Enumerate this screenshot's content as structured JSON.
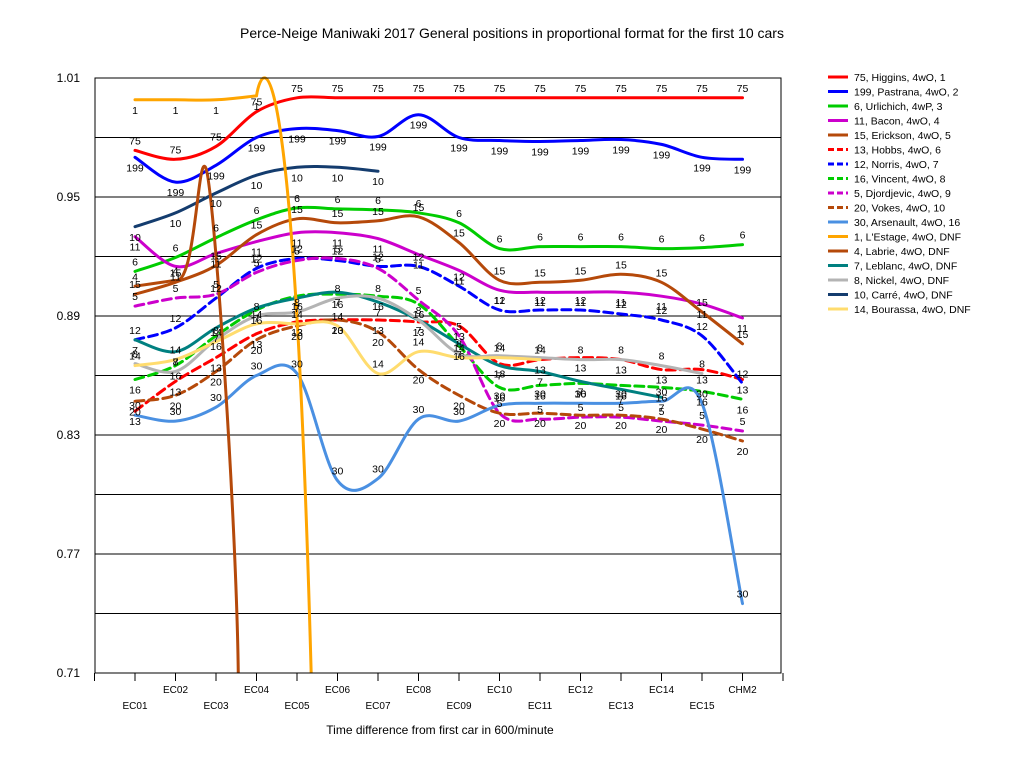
{
  "chart_data": {
    "type": "line",
    "title": "Perce-Neige Maniwaki 2017  General positions in proportional format for the first 10 cars",
    "xlabel": "Time difference from first car in 600/minute",
    "ylabel": "",
    "ylim": [
      0.71,
      1.01
    ],
    "yticks": [
      "0.71",
      "0.77",
      "0.83",
      "0.89",
      "0.95",
      "1.01"
    ],
    "categories": [
      "EC01",
      "EC02",
      "EC03",
      "EC04",
      "EC05",
      "EC06",
      "EC07",
      "EC08",
      "EC09",
      "EC10",
      "EC11",
      "EC12",
      "EC13",
      "EC14",
      "EC15",
      "CHM2"
    ],
    "legend_position": "right",
    "series": [
      {
        "name": "75, Higgins, 4wO, 1",
        "label": "75",
        "color": "#ff0000",
        "dash": false,
        "values": [
          0.9735,
          0.969,
          0.9755,
          0.993,
          1.0,
          1.0,
          1.0,
          1.0,
          1.0,
          1.0,
          1.0,
          1.0,
          1.0,
          1.0,
          1.0,
          1.0
        ]
      },
      {
        "name": "199, Pastrana, 4wO, 2",
        "label": "199",
        "color": "#0000ff",
        "dash": false,
        "values": [
          0.97,
          0.9575,
          0.966,
          0.98,
          0.9845,
          0.9835,
          0.9805,
          0.9915,
          0.98,
          0.9785,
          0.978,
          0.9785,
          0.979,
          0.9765,
          0.97,
          0.969
        ]
      },
      {
        "name": "6, Urlichich, 4wP, 3",
        "label": "6",
        "color": "#00cc00",
        "dash": false,
        "values": [
          0.9125,
          0.9195,
          0.9295,
          0.9385,
          0.9445,
          0.944,
          0.9435,
          0.942,
          0.937,
          0.924,
          0.925,
          0.925,
          0.925,
          0.924,
          0.9245,
          0.926
        ]
      },
      {
        "name": "11, Bacon, 4wO, 4",
        "label": "11",
        "color": "#cc00cc",
        "dash": false,
        "values": [
          0.93,
          0.915,
          0.9215,
          0.9275,
          0.932,
          0.932,
          0.929,
          0.921,
          0.913,
          0.903,
          0.902,
          0.902,
          0.902,
          0.9,
          0.896,
          0.889
        ]
      },
      {
        "name": "15, Erickson, 4wO, 5",
        "label": "15",
        "color": "#b5490a",
        "dash": false,
        "values": [
          0.901,
          0.907,
          0.9155,
          0.931,
          0.939,
          0.937,
          0.938,
          0.94,
          0.927,
          0.908,
          0.907,
          0.908,
          0.911,
          0.907,
          0.892,
          0.876
        ]
      },
      {
        "name": "13, Hobbs, 4wO, 6",
        "label": "13",
        "color": "#ff0000",
        "dash": true,
        "values": [
          0.842,
          0.857,
          0.869,
          0.881,
          0.887,
          0.888,
          0.888,
          0.887,
          0.885,
          0.866,
          0.868,
          0.869,
          0.868,
          0.863,
          0.863,
          0.858
        ]
      },
      {
        "name": "12, Norris, 4wO, 7",
        "label": "12",
        "color": "#0000ff",
        "dash": true,
        "values": [
          0.878,
          0.884,
          0.899,
          0.914,
          0.919,
          0.918,
          0.915,
          0.915,
          0.905,
          0.893,
          0.893,
          0.893,
          0.891,
          0.888,
          0.88,
          0.856
        ]
      },
      {
        "name": "16, Vincent, 4wO, 8",
        "label": "16",
        "color": "#00cc00",
        "dash": true,
        "values": [
          0.858,
          0.865,
          0.88,
          0.893,
          0.9,
          0.901,
          0.9,
          0.896,
          0.875,
          0.854,
          0.855,
          0.856,
          0.855,
          0.854,
          0.852,
          0.848
        ]
      },
      {
        "name": "5, Djordjevic, 4wO, 9",
        "label": "5",
        "color": "#cc00cc",
        "dash": true,
        "values": [
          0.895,
          0.899,
          0.901,
          0.912,
          0.918,
          0.919,
          0.914,
          0.898,
          0.88,
          0.841,
          0.838,
          0.839,
          0.839,
          0.837,
          0.835,
          0.832
        ]
      },
      {
        "name": "20, Vokes, 4wO, 10",
        "label": "20",
        "color": "#b5490a",
        "dash": true,
        "values": [
          0.847,
          0.85,
          0.862,
          0.878,
          0.885,
          0.888,
          0.882,
          0.863,
          0.85,
          0.841,
          0.841,
          0.84,
          0.84,
          0.838,
          0.833,
          0.827
        ]
      },
      {
        "name": "30, Arsenault, 4wO, 16",
        "label": "30",
        "color": "#4a90e2",
        "dash": false,
        "values": [
          0.84,
          0.837,
          0.844,
          0.86,
          0.861,
          0.807,
          0.808,
          0.838,
          0.837,
          0.845,
          0.846,
          0.846,
          0.846,
          0.847,
          0.846,
          0.745
        ]
      },
      {
        "name": "1, L'Estage, 4wO, DNF",
        "label": "1",
        "color": "#ffa500",
        "dash": false,
        "values": [
          0.999,
          0.999,
          0.999,
          1.001,
          null,
          null,
          null,
          null,
          null,
          null,
          null,
          null,
          null,
          null,
          null,
          null
        ]
      },
      {
        "name": "4, Labrie, 4wO, DNF",
        "label": "4",
        "color": "#b5490a",
        "dash": false,
        "values": [
          0.905,
          0.908,
          null,
          null,
          null,
          null,
          null,
          null,
          null,
          null,
          null,
          null,
          null,
          null,
          null,
          null
        ]
      },
      {
        "name": "7, Leblanc, 4wO, DNF",
        "label": "7",
        "color": "#008080",
        "dash": false,
        "values": [
          0.878,
          0.872,
          0.884,
          0.894,
          0.899,
          0.902,
          0.897,
          0.888,
          0.876,
          0.865,
          0.862,
          0.857,
          0.853,
          0.849,
          null,
          null
        ]
      },
      {
        "name": "8, Nickel, 4wO, DNF",
        "label": "8",
        "color": "#b4b4b4",
        "dash": false,
        "values": [
          0.866,
          0.862,
          0.878,
          0.89,
          0.892,
          0.899,
          0.899,
          0.888,
          0.871,
          0.87,
          0.869,
          0.868,
          0.868,
          0.865,
          0.861,
          null
        ]
      },
      {
        "name": "10, Carré, 4wO, DNF",
        "label": "10",
        "color": "#143c6e",
        "dash": false,
        "values": [
          0.935,
          0.942,
          0.952,
          0.961,
          0.965,
          0.965,
          0.963,
          null,
          null,
          null,
          null,
          null,
          null,
          null,
          null,
          null
        ]
      },
      {
        "name": "14, Bourassa, 4wO, DNF",
        "label": "14",
        "color": "#ffdc6e",
        "dash": false,
        "values": [
          0.865,
          0.868,
          0.877,
          0.886,
          0.886,
          0.885,
          0.861,
          0.872,
          0.869,
          0.869,
          0.868,
          null,
          null,
          null,
          null,
          null
        ]
      }
    ]
  }
}
